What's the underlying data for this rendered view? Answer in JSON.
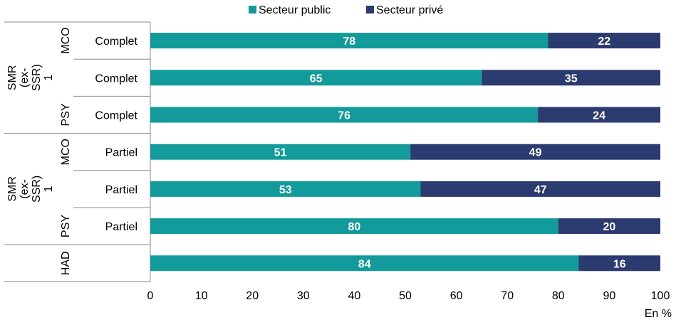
{
  "chart_data": {
    "type": "bar",
    "orientation": "horizontal",
    "stacked": true,
    "groups": [
      "MCO",
      "SMR (ex-SSR) 1",
      "PSY",
      "MCO",
      "SMR (ex-SSR) 1",
      "PSY",
      "HAD"
    ],
    "categories": [
      "Complet",
      "Complet",
      "Complet",
      "Partiel",
      "Partiel",
      "Partiel",
      ""
    ],
    "series": [
      {
        "name": "Secteur public",
        "color": "#139a9a",
        "values": [
          78,
          65,
          76,
          51,
          53,
          80,
          84
        ]
      },
      {
        "name": "Secteur privé",
        "color": "#2b3a6f",
        "values": [
          22,
          35,
          24,
          49,
          47,
          20,
          16
        ]
      }
    ],
    "xlim": [
      0,
      100
    ],
    "xticks": [
      "0",
      "10",
      "20",
      "30",
      "40",
      "50",
      "60",
      "70",
      "80",
      "90",
      "100"
    ],
    "xlabel": "En %",
    "legend_position": "top"
  }
}
